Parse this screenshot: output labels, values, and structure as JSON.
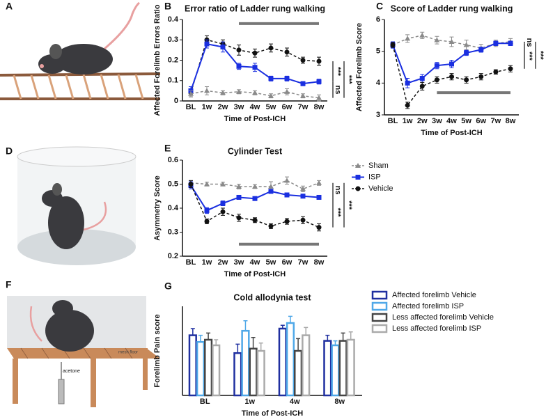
{
  "panel_labels": [
    "A",
    "B",
    "C",
    "D",
    "E",
    "F",
    "G"
  ],
  "illustration_text": [
    "mesh floor",
    "acetone"
  ],
  "chart_data": [
    {
      "type": "line",
      "title": "Error ratio of Ladder rung walking",
      "x_label": "Time of Post-ICH",
      "y_label": "Affected Forelimb Errors Ratio",
      "categories": [
        "BL",
        "1w",
        "2w",
        "3w",
        "4w",
        "5w",
        "6w",
        "7w",
        "8w"
      ],
      "ylim": [
        0,
        0.4
      ],
      "yticks": [
        0,
        0.1,
        0.2,
        0.3,
        0.4
      ],
      "series": [
        {
          "color": "#111111",
          "marker": "circle",
          "dash": true,
          "values": [
            0.04,
            0.3,
            0.28,
            0.25,
            0.235,
            0.26,
            0.24,
            0.2,
            0.195
          ],
          "errors": [
            0.02,
            0.02,
            0.02,
            0.025,
            0.02,
            0.02,
            0.02,
            0.015,
            0.02
          ]
        },
        {
          "color": "#1a2fe0",
          "marker": "square",
          "dash": false,
          "values": [
            0.05,
            0.28,
            0.265,
            0.17,
            0.165,
            0.11,
            0.11,
            0.085,
            0.095
          ],
          "errors": [
            0.02,
            0.02,
            0.025,
            0.015,
            0.02,
            0.012,
            0.012,
            0.01,
            0.012
          ]
        },
        {
          "color": "#8a8a8a",
          "marker": "triangle",
          "dash": true,
          "values": [
            0.035,
            0.05,
            0.04,
            0.045,
            0.04,
            0.025,
            0.045,
            0.025,
            0.015
          ],
          "errors": [
            0.015,
            0.02,
            0.01,
            0.01,
            0.01,
            0.01,
            0.015,
            0.01,
            0.015
          ]
        }
      ],
      "annotations": [
        "***",
        "ns",
        "***"
      ]
    },
    {
      "type": "line",
      "title": "Score of Ladder rung walking",
      "x_label": "Time of Post-ICH",
      "y_label": "Affected Forelimb Score",
      "categories": [
        "BL",
        "1w",
        "2w",
        "3w",
        "4w",
        "5w",
        "6w",
        "7w",
        "8w"
      ],
      "ylim": [
        3,
        6
      ],
      "yticks": [
        3,
        4,
        5,
        6
      ],
      "series": [
        {
          "color": "#8a8a8a",
          "marker": "triangle",
          "dash": true,
          "values": [
            5.2,
            5.4,
            5.5,
            5.35,
            5.3,
            5.2,
            5.1,
            5.25,
            5.3
          ],
          "errors": [
            0.1,
            0.12,
            0.1,
            0.12,
            0.15,
            0.15,
            0.12,
            0.1,
            0.1
          ]
        },
        {
          "color": "#1a2fe0",
          "marker": "square",
          "dash": false,
          "values": [
            5.2,
            4.0,
            4.15,
            4.55,
            4.6,
            4.95,
            5.05,
            5.25,
            5.25
          ],
          "errors": [
            0.1,
            0.15,
            0.12,
            0.1,
            0.12,
            0.08,
            0.08,
            0.07,
            0.07
          ]
        },
        {
          "color": "#111111",
          "marker": "circle",
          "dash": true,
          "values": [
            5.2,
            3.3,
            3.9,
            4.1,
            4.2,
            4.1,
            4.2,
            4.35,
            4.45
          ],
          "errors": [
            0.08,
            0.1,
            0.12,
            0.1,
            0.1,
            0.1,
            0.1,
            0.07,
            0.1
          ]
        }
      ],
      "annotations": [
        "ns",
        "***",
        "***"
      ]
    },
    {
      "type": "line",
      "title": "Cylinder Test",
      "x_label": "Time of Post-ICH",
      "y_label": "Asymmetry Score",
      "categories": [
        "BL",
        "1w",
        "2w",
        "3w",
        "4w",
        "5w",
        "6w",
        "7w",
        "8w"
      ],
      "ylim": [
        0.2,
        0.6
      ],
      "yticks": [
        0.2,
        0.3,
        0.4,
        0.5,
        0.6
      ],
      "series": [
        {
          "name": "Sham",
          "color": "#8a8a8a",
          "marker": "triangle",
          "dash": true,
          "values": [
            0.505,
            0.5,
            0.5,
            0.49,
            0.49,
            0.49,
            0.515,
            0.48,
            0.505
          ],
          "errors": [
            0.01,
            0.008,
            0.008,
            0.01,
            0.008,
            0.02,
            0.015,
            0.012,
            0.01
          ]
        },
        {
          "name": "ISP",
          "color": "#1a2fe0",
          "marker": "square",
          "dash": false,
          "values": [
            0.495,
            0.39,
            0.42,
            0.445,
            0.44,
            0.47,
            0.455,
            0.45,
            0.445
          ],
          "errors": [
            0.015,
            0.012,
            0.01,
            0.008,
            0.008,
            0.008,
            0.008,
            0.008,
            0.008
          ]
        },
        {
          "name": "Vehicle",
          "color": "#111111",
          "marker": "circle",
          "dash": true,
          "values": [
            0.5,
            0.345,
            0.385,
            0.36,
            0.35,
            0.325,
            0.345,
            0.35,
            0.32
          ],
          "errors": [
            0.015,
            0.01,
            0.015,
            0.015,
            0.01,
            0.01,
            0.012,
            0.015,
            0.015
          ]
        }
      ],
      "annotations": [
        "ns",
        "***",
        "***"
      ]
    },
    {
      "type": "bar",
      "title": "Cold allodynia test",
      "x_label": "Time of Post-ICH",
      "y_label": "Forelimb Pain score",
      "categories": [
        "BL",
        "1w",
        "4w",
        "8w"
      ],
      "ylim": [
        0,
        8
      ],
      "series": [
        {
          "name": "Affected forelimb Vehicle",
          "color": "#1f2fa0",
          "values": [
            5.4,
            3.8,
            6.0,
            4.9
          ],
          "errors": [
            0.6,
            0.8,
            0.3,
            0.5
          ]
        },
        {
          "name": "Affected forelimb ISP",
          "color": "#4fa8e8",
          "values": [
            4.8,
            5.8,
            6.5,
            4.5
          ],
          "errors": [
            0.6,
            0.9,
            0.6,
            0.4
          ]
        },
        {
          "name": "Less affected forelimb Vehicle",
          "color": "#444444",
          "values": [
            5.0,
            4.2,
            4.0,
            4.9
          ],
          "errors": [
            0.6,
            1.0,
            1.1,
            0.7
          ]
        },
        {
          "name": "Less affected forelimb ISP",
          "color": "#aaaaaa",
          "values": [
            4.5,
            4.0,
            5.4,
            5.0
          ],
          "errors": [
            0.5,
            0.7,
            0.7,
            0.7
          ]
        }
      ]
    }
  ]
}
